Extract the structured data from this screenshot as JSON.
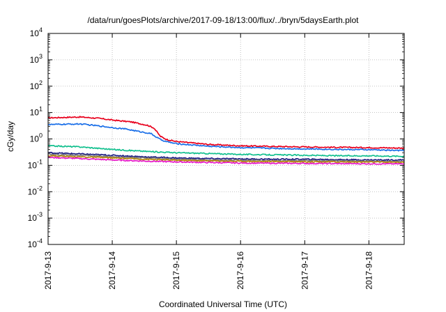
{
  "chart_data": {
    "type": "line",
    "title": "/data/run/goesPlots/archive/2017-09-18/13:00/flux/../bryn/5daysEarth.plot",
    "xlabel": "Coordinated Universal Time (UTC)",
    "ylabel": "cGy/day",
    "y_scale": "log",
    "ylim_exponents": [
      -4,
      4
    ],
    "y_tick_labels": [
      {
        "base": "10",
        "exp": "4"
      },
      {
        "base": "10",
        "exp": "3"
      },
      {
        "base": "10",
        "exp": "2"
      },
      {
        "base": "10",
        "exp": "1"
      },
      {
        "base": "10",
        "exp": "0"
      },
      {
        "base": "10",
        "exp": "-1"
      },
      {
        "base": "10",
        "exp": "-2"
      },
      {
        "base": "10",
        "exp": "-3"
      },
      {
        "base": "10",
        "exp": "-4"
      }
    ],
    "x_ticks": [
      "2017-9-13",
      "2017-9-14",
      "2017-9-15",
      "2017-9-16",
      "2017-9-17",
      "2017-9-18"
    ],
    "x_range_days": [
      0,
      5.55
    ],
    "grid": true,
    "series": [
      {
        "color": "#e8001c",
        "points": [
          [
            0,
            6.3
          ],
          [
            0.5,
            6.8
          ],
          [
            0.8,
            6.0
          ],
          [
            1.0,
            5.2
          ],
          [
            1.3,
            4.4
          ],
          [
            1.55,
            3.3
          ],
          [
            1.65,
            2.6
          ],
          [
            1.75,
            1.25
          ],
          [
            1.85,
            0.95
          ],
          [
            2.0,
            0.8
          ],
          [
            2.5,
            0.62
          ],
          [
            3.0,
            0.55
          ],
          [
            3.5,
            0.52
          ],
          [
            4.0,
            0.5
          ],
          [
            4.5,
            0.48
          ],
          [
            5.0,
            0.47
          ],
          [
            5.55,
            0.45
          ]
        ]
      },
      {
        "color": "#1a6fe8",
        "points": [
          [
            0,
            3.5
          ],
          [
            0.5,
            3.7
          ],
          [
            0.8,
            3.1
          ],
          [
            1.0,
            2.7
          ],
          [
            1.2,
            2.4
          ],
          [
            1.4,
            1.95
          ],
          [
            1.6,
            1.6
          ],
          [
            1.75,
            0.95
          ],
          [
            1.85,
            0.78
          ],
          [
            2.0,
            0.66
          ],
          [
            2.5,
            0.53
          ],
          [
            3.0,
            0.47
          ],
          [
            3.5,
            0.44
          ],
          [
            4.0,
            0.42
          ],
          [
            4.5,
            0.4
          ],
          [
            5.0,
            0.39
          ],
          [
            5.55,
            0.36
          ]
        ]
      },
      {
        "color": "#12c08e",
        "points": [
          [
            0,
            0.55
          ],
          [
            0.5,
            0.5
          ],
          [
            1.0,
            0.4
          ],
          [
            1.5,
            0.34
          ],
          [
            2.0,
            0.3
          ],
          [
            2.5,
            0.28
          ],
          [
            3.0,
            0.26
          ],
          [
            3.5,
            0.25
          ],
          [
            4.0,
            0.24
          ],
          [
            4.5,
            0.23
          ],
          [
            5.0,
            0.23
          ],
          [
            5.55,
            0.22
          ]
        ]
      },
      {
        "color": "#1c1c84",
        "points": [
          [
            0,
            0.3
          ],
          [
            0.5,
            0.27
          ],
          [
            1.0,
            0.24
          ],
          [
            1.5,
            0.21
          ],
          [
            2.0,
            0.19
          ],
          [
            2.5,
            0.18
          ],
          [
            3.0,
            0.175
          ],
          [
            3.5,
            0.17
          ],
          [
            4.0,
            0.17
          ],
          [
            4.5,
            0.165
          ],
          [
            5.0,
            0.16
          ],
          [
            5.55,
            0.16
          ]
        ]
      },
      {
        "color": "#7a7a7a",
        "points": [
          [
            0,
            0.26
          ],
          [
            0.5,
            0.24
          ],
          [
            1.0,
            0.21
          ],
          [
            1.5,
            0.19
          ],
          [
            2.0,
            0.17
          ],
          [
            2.5,
            0.16
          ],
          [
            3.0,
            0.155
          ],
          [
            3.5,
            0.15
          ],
          [
            4.0,
            0.15
          ],
          [
            4.5,
            0.148
          ],
          [
            5.0,
            0.145
          ],
          [
            5.55,
            0.14
          ]
        ]
      },
      {
        "color": "#b8860b",
        "points": [
          [
            0,
            0.23
          ],
          [
            0.5,
            0.21
          ],
          [
            1.0,
            0.19
          ],
          [
            1.5,
            0.17
          ],
          [
            2.0,
            0.155
          ],
          [
            2.5,
            0.148
          ],
          [
            3.0,
            0.142
          ],
          [
            3.5,
            0.14
          ],
          [
            4.0,
            0.138
          ],
          [
            4.5,
            0.135
          ],
          [
            5.0,
            0.133
          ],
          [
            5.55,
            0.13
          ]
        ]
      },
      {
        "color": "#e619c8",
        "points": [
          [
            0,
            0.2
          ],
          [
            0.5,
            0.18
          ],
          [
            1.0,
            0.16
          ],
          [
            1.5,
            0.145
          ],
          [
            2.0,
            0.135
          ],
          [
            2.5,
            0.128
          ],
          [
            3.0,
            0.122
          ],
          [
            3.5,
            0.12
          ],
          [
            4.0,
            0.118
          ],
          [
            4.5,
            0.116
          ],
          [
            5.0,
            0.115
          ],
          [
            5.55,
            0.113
          ]
        ]
      }
    ]
  }
}
